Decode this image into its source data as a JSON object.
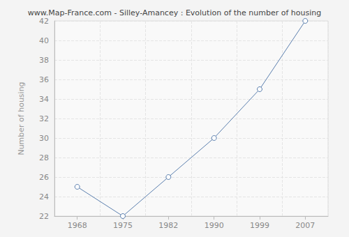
{
  "chart_data": {
    "type": "line",
    "title": "www.Map-France.com - Silley-Amancey : Evolution of the number of housing",
    "y_label": "Number of housing",
    "categories": [
      "1968",
      "1975",
      "1982",
      "1990",
      "1999",
      "2007"
    ],
    "values": [
      25,
      22,
      26,
      30,
      35,
      42
    ],
    "color": "#5b7fae",
    "marker": "circle",
    "line_style": "solid",
    "ylim": [
      22,
      42
    ],
    "yticks": [
      22,
      24,
      26,
      28,
      30,
      32,
      34,
      36,
      38,
      40,
      42
    ],
    "grid": true
  }
}
